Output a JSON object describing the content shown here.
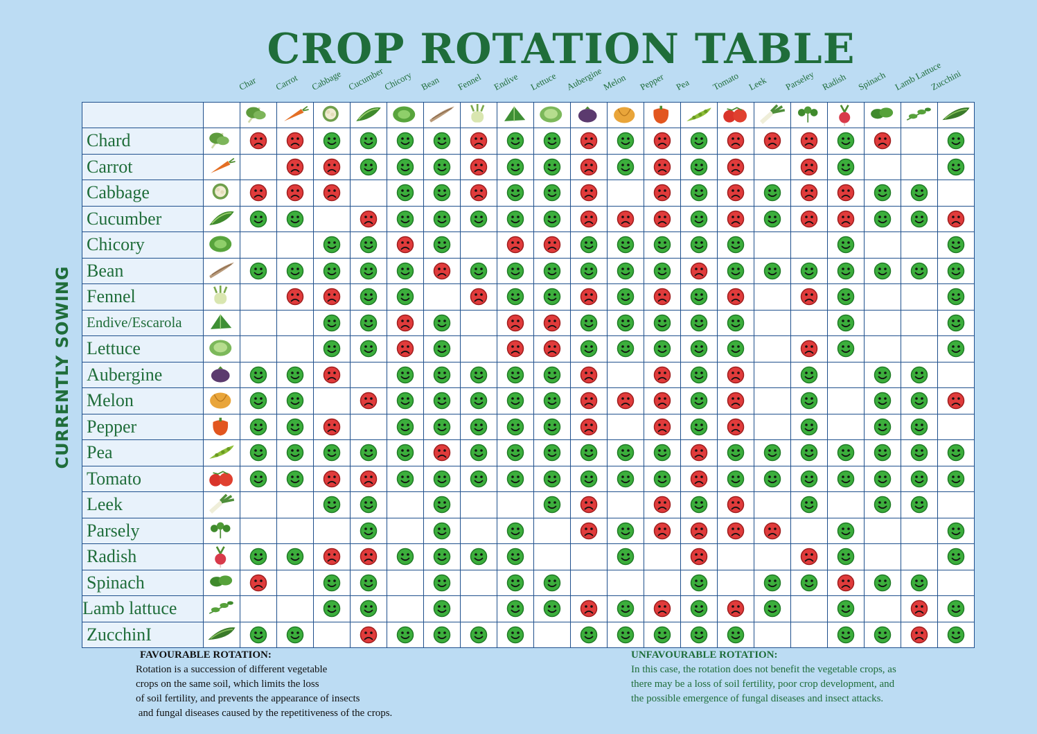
{
  "title": "CROP ROTATION TABLE",
  "side_label": "CURRENTLY SOWING",
  "columns": [
    "Char",
    "Carrot",
    "Cabbage",
    "Cucumber",
    "Chicory",
    "Bean",
    "Fennel",
    "Endive",
    "Lettuce",
    "Aubergine",
    "Melon",
    "Pepper",
    "Pea",
    "Tomato",
    "Leek",
    "Parseley",
    "Radish",
    "Spinach",
    "Lamb Lattuce",
    "Zucchini"
  ],
  "rows": [
    {
      "name": "Chard",
      "cells": "BBGGGGBGGBGBGBBBGB.G"
    },
    {
      "name": "Carrot",
      "cells": ".BBGGGBGGBGBGB.BG..G"
    },
    {
      "name": "Cabbage",
      "cells": "BBB.GGBGGB.BGBGBBGG."
    },
    {
      "name": "Cucumber",
      "cells": "GG.BGGGGGBBBGBGBBGGB"
    },
    {
      "name": "Chicory",
      "cells": "..GGBG.BBGGGGG..G..G"
    },
    {
      "name": "Bean",
      "cells": "GGGGGBGGGGGGBGGGGGGG"
    },
    {
      "name": "Fennel",
      "cells": ".BBGG.BGGBGBGB.BG..G"
    },
    {
      "name": "Endive/Escarola",
      "cells": "..GGBG.BBGGGGG..G..G"
    },
    {
      "name": "Lettuce",
      "cells": "..GGBG.BBGGGGG.BG..G"
    },
    {
      "name": "Aubergine",
      "cells": "GGB.GGGGGB.BGB.G.GG."
    },
    {
      "name": "Melon",
      "cells": "GG.BGGGGGBBBGB.G.GGB"
    },
    {
      "name": "Pepper",
      "cells": "GGB.GGGGGB.BGB.G.GG."
    },
    {
      "name": "Pea",
      "cells": "GGGGGBGGGGGGBGGGGGGG"
    },
    {
      "name": "Tomato",
      "cells": "GGBBGGGGGGGGBGGGGGGG"
    },
    {
      "name": "Leek",
      "cells": "..GG.G..GB.BGB.G.GG."
    },
    {
      "name": "Parsely",
      "cells": "...G.G.G.BGBBBB.G..G"
    },
    {
      "name": "Radish",
      "cells": "GGBBGGGG..G.B..BG..G"
    },
    {
      "name": "Spinach",
      "cells": "B.GG.G.GG...G.GGBGG."
    },
    {
      "name": "Lamb lattuce",
      "cells": "..GG.G.GGBGBGBG.G.BG"
    },
    {
      "name": "ZucchinI",
      "cells": "GG.BGGGG.GGGGG..GGBG"
    }
  ],
  "legend": {
    "favourable_title": "FAVOURABLE ROTATION:",
    "favourable_lines": [
      "Rotation is a succession of different vegetable",
      "crops on the same soil,  which limits the loss",
      "of soil fertility, and prevents the appearance of insects",
      " and fungal diseases caused by the repetitiveness of the crops."
    ],
    "unfavourable_title": "UNFAVOURABLE ROTATION:",
    "unfavourable_lines": [
      "In this case, the rotation does not benefit the vegetable crops, as",
      "there may be a loss of soil fertility, poor crop development, and",
      "the possible emergence of fungal diseases and insect attacks."
    ]
  },
  "colors": {
    "title": "#1f6d3a",
    "background": "#bcdcf3",
    "grid_line": "#1e4f8c",
    "favourable": "#3cae3c",
    "unfavourable": "#e03b3b"
  },
  "icons": {
    "favourable": "smiley-face-icon",
    "unfavourable": "frowning-face-icon",
    "column_images": [
      "chard",
      "carrot",
      "cauliflower",
      "cucumber",
      "chicory",
      "bean",
      "fennel",
      "endive",
      "lettuce",
      "aubergine",
      "melon",
      "pepper",
      "pea",
      "tomato",
      "leek",
      "parsley",
      "radish",
      "spinach",
      "lamb-lettuce",
      "zucchini"
    ],
    "row_images": [
      "chard",
      "carrot",
      "cauliflower",
      "cucumber",
      "chicory",
      "bean",
      "fennel",
      "endive",
      "lettuce",
      "aubergine",
      "melon",
      "pepper",
      "pea",
      "tomato",
      "leek",
      "parsley",
      "radish",
      "spinach",
      "lamb-lettuce",
      "zucchini"
    ]
  }
}
